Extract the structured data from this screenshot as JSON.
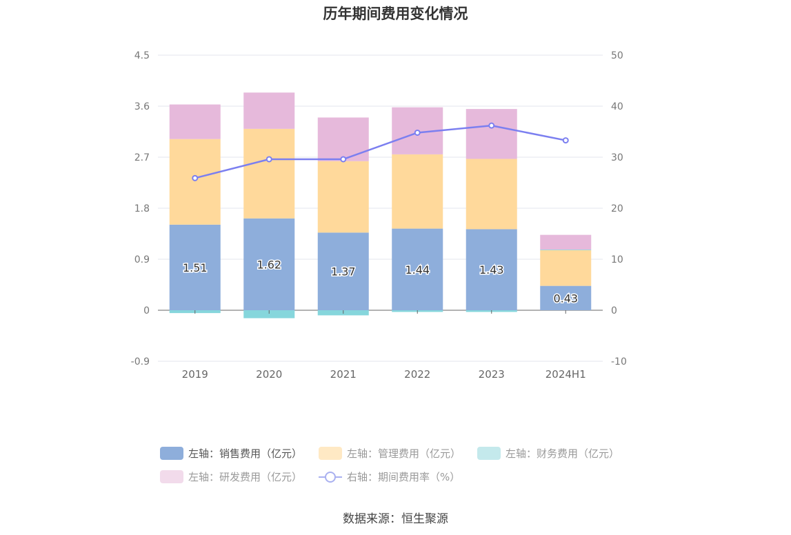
{
  "title": "历年期间费用变化情况",
  "source": "数据来源：恒生聚源",
  "colors": {
    "sales": "#8eaedb",
    "admin": "#ffd99b",
    "finance": "#86d6dc",
    "rd": "#e6b9db",
    "rate": "#7b7ff0",
    "grid": "#e3e6ee",
    "axis_text": "#777777"
  },
  "legend": [
    {
      "label": "左轴：销售费用（亿元）",
      "color": "#8eaedb",
      "dim": false
    },
    {
      "label": "左轴：管理费用（亿元）",
      "color": "#ffe9c4",
      "dim": true
    },
    {
      "label": "左轴：财务费用（亿元）",
      "color": "#c4e9ec",
      "dim": true
    },
    {
      "label": "左轴：研发费用（亿元）",
      "color": "#f2dbeb",
      "dim": true
    },
    {
      "label": "右轴：期间费用率（%）",
      "color": "#a9b0f0",
      "dim": true,
      "line": true
    }
  ],
  "chart_data": {
    "type": "bar",
    "stacked": true,
    "title": "历年期间费用变化情况",
    "categories": [
      "2019",
      "2020",
      "2021",
      "2022",
      "2023",
      "2024H1"
    ],
    "left_axis": {
      "ticks": [
        "4.5",
        "3.6",
        "2.7",
        "1.8",
        "0.9",
        "0",
        "-0.9"
      ],
      "ylim": [
        -0.9,
        4.5
      ]
    },
    "right_axis": {
      "ticks": [
        "50",
        "40",
        "30",
        "20",
        "10",
        "0",
        "-10"
      ],
      "ylim": [
        -10,
        50
      ]
    },
    "series": [
      {
        "name": "左轴：销售费用（亿元）",
        "axis": "left",
        "values": [
          1.51,
          1.62,
          1.37,
          1.44,
          1.43,
          0.43
        ],
        "labels": [
          "1.51",
          "1.62",
          "1.37",
          "1.44",
          "1.43",
          "0.43"
        ]
      },
      {
        "name": "左轴：管理费用（亿元）",
        "axis": "left",
        "values": [
          1.51,
          1.58,
          1.26,
          1.31,
          1.24,
          0.63
        ]
      },
      {
        "name": "左轴：财务费用（亿元）",
        "axis": "left",
        "values": [
          -0.05,
          -0.14,
          -0.09,
          -0.03,
          -0.03,
          0.01
        ]
      },
      {
        "name": "左轴：研发费用（亿元）",
        "axis": "left",
        "values": [
          0.61,
          0.64,
          0.77,
          0.83,
          0.88,
          0.26
        ]
      },
      {
        "name": "右轴：期间费用率（%）",
        "axis": "right",
        "type": "line",
        "values": [
          25.9,
          29.6,
          29.6,
          34.8,
          36.2,
          33.3
        ]
      }
    ],
    "grid": true,
    "legend_position": "bottom"
  }
}
